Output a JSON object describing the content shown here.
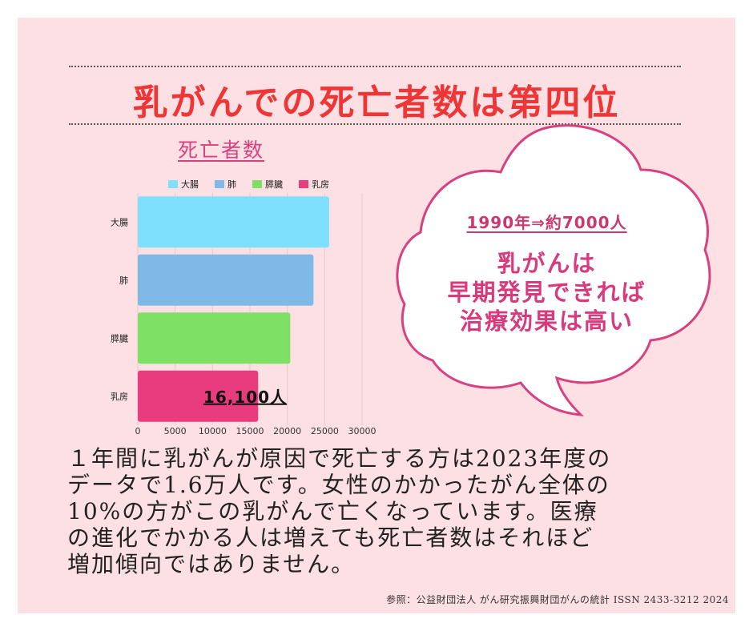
{
  "title": "乳がんでの死亡者数は第四位",
  "subtitle": "死亡者数",
  "chart_data": {
    "type": "bar",
    "orientation": "horizontal",
    "categories": [
      "大腸",
      "肺",
      "膵臓",
      "乳房"
    ],
    "values": [
      25600,
      23500,
      20400,
      16100
    ],
    "colors": [
      "#7ee0fc",
      "#7fb9e6",
      "#7fe066",
      "#e83c7f"
    ],
    "legend": [
      "大腸",
      "肺",
      "膵臓",
      "乳房"
    ],
    "legend_position": "top",
    "xticks": [
      0,
      5000,
      10000,
      15000,
      20000,
      25000,
      30000
    ],
    "xlim": [
      0,
      30000
    ],
    "grid": true,
    "annotation": "16,100人"
  },
  "bubble": {
    "line1": "1990年⇒約7000人",
    "line2": "乳がんは",
    "line3": "早期発見できれば",
    "line4": "治療効果は高い"
  },
  "body_lines": [
    "１年間に乳がんが原因で死亡する方は2023年度の",
    "データで1.6万人です。女性のかかったがん全体の",
    "10%の方がこの乳がんで亡くなっています。医療",
    "の進化でかかる人は増えても死亡者数はそれほど",
    "増加傾向ではありません。"
  ],
  "source": "参照：公益財団法人 がん研究振興財団がんの統計 ISSN 2433-3212 2024"
}
